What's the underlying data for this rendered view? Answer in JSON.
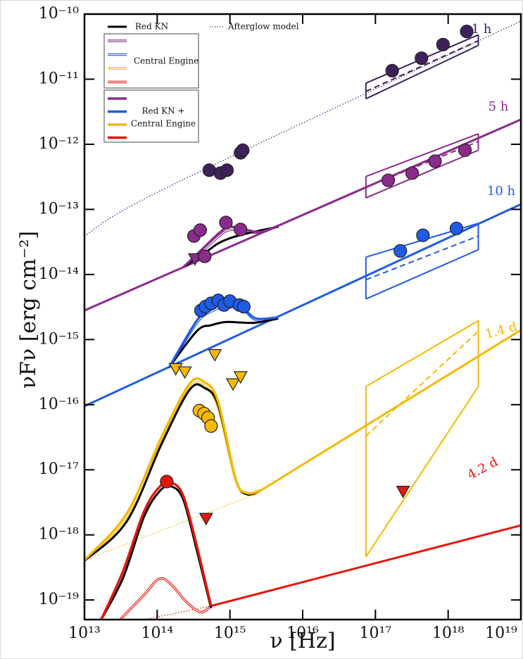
{
  "chart_data": {
    "type": "sed",
    "xlabel": "ν [Hz]",
    "ylabel": "νFν [erg cm⁻²]",
    "xscale": "log",
    "yscale": "log",
    "xlim": [
      10000000000000.0,
      1e+19
    ],
    "ylim": [
      5e-20,
      1e-10
    ],
    "xticks": [
      {
        "value": 10000000000000.0,
        "label": "10¹³"
      },
      {
        "value": 100000000000000.0,
        "label": "10¹⁴"
      },
      {
        "value": 1000000000000000.0,
        "label": "10¹⁵"
      },
      {
        "value": 1e+16,
        "label": "10¹⁶"
      },
      {
        "value": 1e+17,
        "label": "10¹⁷"
      },
      {
        "value": 1e+18,
        "label": "10¹⁸"
      },
      {
        "value": 1e+19,
        "label": "10¹⁹"
      }
    ],
    "yticks": [
      {
        "value": 1e-10,
        "label": "10⁻¹⁰"
      },
      {
        "value": 1e-11,
        "label": "10⁻¹¹"
      },
      {
        "value": 1e-12,
        "label": "10⁻¹²"
      },
      {
        "value": 1e-13,
        "label": "10⁻¹³"
      },
      {
        "value": 1e-14,
        "label": "10⁻¹⁴"
      },
      {
        "value": 1e-15,
        "label": "10⁻¹⁵"
      },
      {
        "value": 1e-16,
        "label": "10⁻¹⁶"
      },
      {
        "value": 1e-17,
        "label": "10⁻¹⁷"
      },
      {
        "value": 1e-18,
        "label": "10⁻¹⁸"
      },
      {
        "value": 1e-19,
        "label": "10⁻¹⁹"
      }
    ],
    "legend": {
      "red_kn": "Red KN",
      "red_kn_color": "#000000",
      "afterglow": "Afterglow model",
      "afterglow_color": "#34318f",
      "central_engine": "Central Engine",
      "combined": [
        "Red KN +",
        "Central Engine"
      ]
    },
    "epochs": [
      {
        "label": "1 h",
        "color": "#3e215a",
        "points": {
          "x": [
            520000000000000.0,
            740000000000000.0,
            910000000000000.0,
            1400000000000000.0,
            1500000000000000.0,
            1.7e+17,
            4.3e+17,
            8.5e+17,
            1.8e+18
          ],
          "values": [
            4e-13,
            3.6e-13,
            4e-13,
            7.4e-13,
            8.1e-13,
            1.35e-11,
            2.1e-11,
            3.4e-11,
            5.4e-11
          ]
        },
        "afterglow_dotted": {
          "x": [
            10000000000000.0,
            140000000000000.0,
            1e+19
          ],
          "values": [
            3.9e-14,
            2.2e-13,
            7.8e-11
          ]
        },
        "xray": {
          "x": [
            7.4e+16,
            2.6e+18
          ],
          "upper": [
            8.7e-12,
            4.8e-11
          ],
          "lower": [
            5e-12,
            3.3e-11
          ],
          "best": [
            6.5e-12,
            3.9e-11
          ]
        }
      },
      {
        "label": "5 h",
        "color": "#8a2b8c",
        "points": {
          "x": [
            320000000000000.0,
            390000000000000.0,
            880000000000000.0,
            1400000000000000.0,
            450000000000000.0,
            1.5e+17,
            3.2e+17,
            6.6e+17,
            1.7e+18
          ],
          "values": [
            3.9e-14,
            4.8e-14,
            6.3e-14,
            4.9e-14,
            1.9e-14,
            2.8e-13,
            3.6e-13,
            5.5e-13,
            8.1e-13
          ]
        },
        "upper_limits": {
          "x": [
            330000000000000.0
          ],
          "values": [
            1.75e-14
          ]
        },
        "afterglow": {
          "x": [
            10000000000000.0,
            1e+19
          ],
          "values": [
            2.8e-15,
            2.4e-12
          ]
        },
        "central_engine": {
          "x": [
            230000000000000.0,
            440000000000000.0,
            690000000000000.0,
            960000000000000.0,
            1500000000000000.0,
            2600000000000000.0,
            4600000000000000.0
          ],
          "values": [
            1.3e-14,
            2.4e-14,
            3.8e-14,
            4.8e-14,
            4.7e-14,
            4.4e-14,
            5.6e-14
          ]
        },
        "red_kn": {
          "x": [
            230000000000000.0,
            440000000000000.0,
            690000000000000.0,
            1070000000000000.0,
            2100000000000000.0,
            4600000000000000.0
          ],
          "values": [
            1.3e-14,
            2.1e-14,
            3e-14,
            3.7e-14,
            4.5e-14,
            5.4e-14
          ]
        },
        "total": {
          "x": [
            230000000000000.0,
            440000000000000.0,
            690000000000000.0,
            960000000000000.0,
            1500000000000000.0,
            2600000000000000.0,
            4600000000000000.0
          ],
          "values": [
            1.3e-14,
            2.6e-14,
            4.2e-14,
            5.4e-14,
            5e-14,
            4.5e-14,
            5.6e-14
          ]
        },
        "xray": {
          "x": [
            7.4e+16,
            2.6e+18
          ],
          "upper": [
            3.2e-13,
            1.45e-12
          ],
          "lower": [
            1.5e-13,
            8.1e-13
          ],
          "best": [
            2.2e-13,
            1.1e-12
          ]
        }
      },
      {
        "label": "10 h",
        "color": "#1f5be6",
        "points": {
          "x": [
            400000000000000.0,
            460000000000000.0,
            550000000000000.0,
            690000000000000.0,
            830000000000000.0,
            1000000000000000.0,
            1350000000000000.0,
            1550000000000000.0,
            2.2e+17,
            4.5e+17,
            1.3e+18
          ],
          "values": [
            2.8e-15,
            3.2e-15,
            3.6e-15,
            4e-15,
            3.4e-15,
            3.9e-15,
            3.4e-15,
            3.2e-15,
            2.3e-14,
            4e-14,
            5.1e-14
          ]
        },
        "afterglow": {
          "x": [
            10000000000000.0,
            1e+19
          ],
          "values": [
            9.5e-17,
            1.2e-13
          ]
        },
        "central_engine": {
          "x": [
            145000000000000.0,
            350000000000000.0,
            550000000000000.0,
            870000000000000.0,
            1500000000000000.0,
            2300000000000000.0,
            4600000000000000.0
          ],
          "values": [
            3.7e-16,
            1.8e-15,
            2.7e-15,
            3.1e-15,
            2.9e-15,
            2e-15,
            2.2e-15
          ]
        },
        "red_kn": {
          "x": [
            145000000000000.0,
            350000000000000.0,
            550000000000000.0,
            870000000000000.0,
            1500000000000000.0,
            2300000000000000.0,
            4600000000000000.0
          ],
          "values": [
            3.7e-16,
            1.35e-15,
            1.66e-15,
            1.86e-15,
            1.82e-15,
            1.82e-15,
            2.1e-15
          ]
        },
        "total": {
          "x": [
            145000000000000.0,
            350000000000000.0,
            550000000000000.0,
            870000000000000.0,
            1500000000000000.0,
            2300000000000000.0,
            4600000000000000.0
          ],
          "values": [
            3.7e-16,
            1.95e-15,
            3e-15,
            3.5e-15,
            3e-15,
            2.1e-15,
            2.2e-15
          ]
        },
        "xray": {
          "x": [
            7.4e+16,
            2.6e+18
          ],
          "upper": [
            1.85e-14,
            6.1e-14
          ],
          "lower": [
            4.2e-15,
            2.4e-14
          ],
          "best": [
            8.3e-15,
            3.9e-14
          ]
        }
      },
      {
        "label": "1.4 d",
        "color": "#f5b900",
        "points": {
          "x": [
            380000000000000.0,
            440000000000000.0,
            500000000000000.0,
            550000000000000.0
          ],
          "values": [
            8.1e-17,
            7.3e-17,
            6.3e-17,
            4.7e-17
          ]
        },
        "upper_limits": {
          "x": [
            180000000000000.0,
            240000000000000.0,
            620000000000000.0,
            1100000000000000.0,
            1400000000000000.0
          ],
          "values": [
            3.6e-16,
            3.2e-16,
            5.9e-16,
            2.1e-16,
            2.7e-16
          ]
        },
        "afterglow_dotted": {
          "x": [
            10000000000000.0,
            2100000000000000.0
          ],
          "values": [
            4.1e-19,
            4.1e-18
          ]
        },
        "afterglow": {
          "x": [
            2100000000000000.0,
            1e+19
          ],
          "values": [
            4.1e-18,
            1.4e-15
          ]
        },
        "central_engine": {
          "x": [
            10000000000000.0,
            38000000000000.0,
            115000000000000.0,
            280000000000000.0,
            450000000000000.0,
            690000000000000.0,
            1200000000000000.0,
            1700000000000000.0,
            2600000000000000.0
          ],
          "values": [
            4.1e-19,
            1.9e-18,
            2.6e-17,
            1.8e-16,
            1.9e-16,
            9e-17,
            7e-18,
            4.3e-18,
            4.8e-18
          ]
        },
        "red_kn": {
          "x": [
            10000000000000.0,
            38000000000000.0,
            115000000000000.0,
            280000000000000.0,
            450000000000000.0,
            690000000000000.0,
            1200000000000000.0,
            1700000000000000.0,
            2600000000000000.0
          ],
          "values": [
            4e-19,
            1.6e-18,
            2.5e-17,
            1.7e-16,
            1.8e-16,
            9.8e-17,
            7.2e-18,
            4.2e-18,
            4.8e-18
          ]
        },
        "total": {
          "x": [
            10000000000000.0,
            38000000000000.0,
            115000000000000.0,
            280000000000000.0,
            450000000000000.0,
            690000000000000.0,
            1200000000000000.0,
            1700000000000000.0,
            2600000000000000.0
          ],
          "values": [
            4.1e-19,
            2.1e-18,
            3.2e-17,
            2.1e-16,
            2.2e-16,
            1.1e-16,
            7.2e-18,
            4.4e-18,
            4.8e-18
          ]
        },
        "xray": {
          "x": [
            7.4e+16,
            2.6e+18
          ],
          "upper": [
            1.9e-16,
            1.95e-15
          ],
          "lower": [
            4.6e-19,
            1.9e-16
          ],
          "best": [
            3.3e-17,
            1.35e-15
          ]
        }
      },
      {
        "label": "4.2 d",
        "color": "#e8150c",
        "points": {
          "x": [
            135000000000000.0
          ],
          "values": [
            6.6e-18
          ]
        },
        "upper_limits": {
          "x": [
            470000000000000.0,
            2.4e+17
          ],
          "values": [
            1.8e-18,
            4.7e-18
          ]
        },
        "afterglow_dotted": {
          "x": [
            74000000000000.0,
            550000000000000.0
          ],
          "values": [
            5.1e-20,
            8.1e-20
          ]
        },
        "afterglow": {
          "x": [
            550000000000000.0,
            1e+19
          ],
          "values": [
            8.1e-20,
            1.4e-18
          ]
        },
        "central_engine": {
          "x": [
            31000000000000.0,
            66000000000000.0,
            105000000000000.0,
            150000000000000.0,
            260000000000000.0,
            400000000000000.0,
            550000000000000.0
          ],
          "values": [
            5e-20,
            1.2e-19,
            2.1e-19,
            1.8e-19,
            9e-20,
            6.5e-20,
            8.1e-20
          ]
        },
        "red_kn": {
          "x": [
            17000000000000.0,
            34000000000000.0,
            66000000000000.0,
            110000000000000.0,
            160000000000000.0,
            230000000000000.0,
            350000000000000.0,
            550000000000000.0
          ],
          "values": [
            5e-20,
            2.2e-19,
            1.9e-18,
            4.8e-18,
            5.5e-18,
            3.4e-18,
            5.8e-19,
            7.5e-20
          ]
        },
        "total": {
          "x": [
            17000000000000.0,
            34000000000000.0,
            66000000000000.0,
            110000000000000.0,
            160000000000000.0,
            230000000000000.0,
            350000000000000.0,
            550000000000000.0
          ],
          "values": [
            5e-20,
            2.8e-19,
            2.3e-18,
            5.6e-18,
            6.3e-18,
            3.9e-18,
            6.8e-19,
            8.1e-20
          ]
        }
      }
    ]
  }
}
